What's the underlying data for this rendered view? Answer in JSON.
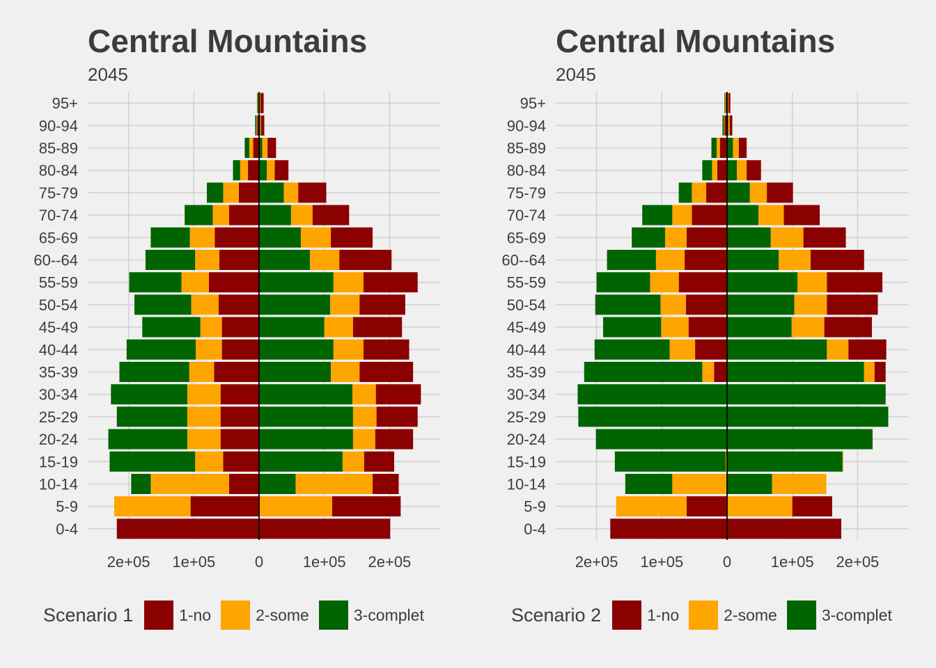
{
  "legend_labels": [
    "1-no",
    "2-some",
    "3-complet"
  ],
  "colors": {
    "1-no": "#8b0000",
    "2-some": "#ffa500",
    "3-complet": "#006400"
  },
  "chart_data": [
    {
      "type": "bar",
      "orientation": "horizontal-population-pyramid",
      "title": "Central Mountains",
      "subtitle": "2045",
      "legend_title": "Scenario 1",
      "legend_position": "bottom",
      "grid": true,
      "xlim": [
        -270000,
        270000
      ],
      "x_ticks": [
        -200000,
        -100000,
        0,
        100000,
        200000
      ],
      "x_tick_labels": [
        "2e+05",
        "1e+05",
        "0",
        "1e+05",
        "2e+05"
      ],
      "categories": [
        "0-4",
        "5-9",
        "10-14",
        "15-19",
        "20-24",
        "25-29",
        "30-34",
        "35-39",
        "40-44",
        "45-49",
        "50-54",
        "55-59",
        "60--64",
        "65-69",
        "70-74",
        "75-79",
        "80-84",
        "85-89",
        "90-94",
        "95+"
      ],
      "series": [
        {
          "name": "1-no",
          "side": "left",
          "values": [
            218000,
            105000,
            46000,
            55000,
            59000,
            59000,
            59000,
            69000,
            57000,
            57000,
            62000,
            77000,
            61000,
            68000,
            46000,
            31000,
            17000,
            9000,
            3000,
            1500
          ]
        },
        {
          "name": "2-some",
          "side": "left",
          "values": [
            0,
            117000,
            120000,
            43000,
            51000,
            51000,
            51000,
            38000,
            40000,
            33000,
            42000,
            42000,
            37000,
            38000,
            25000,
            24000,
            12000,
            6000,
            1000,
            500
          ]
        },
        {
          "name": "3-complet",
          "side": "left",
          "values": [
            0,
            0,
            30000,
            131000,
            121000,
            108000,
            117000,
            107000,
            106000,
            89000,
            87000,
            80000,
            76000,
            60000,
            43000,
            25000,
            11000,
            7000,
            2000,
            1000
          ]
        },
        {
          "name": "3-complet",
          "side": "right",
          "values": [
            0,
            0,
            56000,
            128000,
            144000,
            144000,
            143000,
            110000,
            114000,
            100000,
            109000,
            114000,
            78000,
            64000,
            49000,
            38000,
            12000,
            5000,
            2000,
            1000
          ]
        },
        {
          "name": "2-some",
          "side": "right",
          "values": [
            0,
            112000,
            118000,
            33000,
            34000,
            36000,
            36000,
            44000,
            46000,
            44000,
            45000,
            46000,
            45000,
            46000,
            33000,
            22000,
            12000,
            8000,
            1000,
            1000
          ]
        },
        {
          "name": "1-no",
          "side": "right",
          "values": [
            201000,
            105000,
            40000,
            46000,
            58000,
            63000,
            69000,
            82000,
            70000,
            75000,
            70000,
            83000,
            80000,
            64000,
            56000,
            43000,
            21000,
            13000,
            5000,
            5000
          ]
        }
      ]
    },
    {
      "type": "bar",
      "orientation": "horizontal-population-pyramid",
      "title": "Central Mountains",
      "subtitle": "2045",
      "legend_title": "Scenario 2",
      "legend_position": "bottom",
      "grid": true,
      "xlim": [
        -270000,
        270000
      ],
      "x_ticks": [
        -200000,
        -100000,
        0,
        100000,
        200000
      ],
      "x_tick_labels": [
        "2e+05",
        "1e+05",
        "0",
        "1e+05",
        "2e+05"
      ],
      "categories": [
        "0-4",
        "5-9",
        "10-14",
        "15-19",
        "20-24",
        "25-29",
        "30-34",
        "35-39",
        "40-44",
        "45-49",
        "50-54",
        "55-59",
        "60--64",
        "65-69",
        "70-74",
        "75-79",
        "80-84",
        "85-89",
        "90-94",
        "95+"
      ],
      "series": [
        {
          "name": "1-no",
          "side": "left",
          "values": [
            179000,
            62000,
            0,
            1000,
            0,
            0,
            0,
            20000,
            49000,
            59000,
            63000,
            74000,
            65000,
            62000,
            54000,
            32000,
            15000,
            11000,
            4000,
            2000
          ]
        },
        {
          "name": "2-some",
          "side": "left",
          "values": [
            0,
            108000,
            84000,
            1000,
            0,
            0,
            0,
            18000,
            39000,
            42000,
            39000,
            44000,
            44000,
            33000,
            30000,
            22000,
            8000,
            5000,
            1000,
            1000
          ]
        },
        {
          "name": "3-complet",
          "side": "left",
          "values": [
            0,
            0,
            72000,
            170000,
            201000,
            228000,
            229000,
            181000,
            115000,
            89000,
            100000,
            82000,
            75000,
            51000,
            46000,
            20000,
            15000,
            8000,
            2000,
            1000
          ]
        },
        {
          "name": "3-complet",
          "side": "right",
          "values": [
            0,
            0,
            69000,
            177000,
            223000,
            247000,
            243000,
            210000,
            153000,
            99000,
            103000,
            108000,
            79000,
            67000,
            48000,
            35000,
            15000,
            9000,
            2000,
            1000
          ]
        },
        {
          "name": "2-some",
          "side": "right",
          "values": [
            0,
            100000,
            83000,
            1000,
            0,
            0,
            0,
            16000,
            33000,
            50000,
            50000,
            45000,
            49000,
            50000,
            39000,
            26000,
            15000,
            9000,
            2000,
            1000
          ]
        },
        {
          "name": "1-no",
          "side": "right",
          "values": [
            175000,
            61000,
            0,
            0,
            0,
            0,
            0,
            17000,
            58000,
            73000,
            78000,
            85000,
            82000,
            65000,
            55000,
            40000,
            22000,
            12000,
            4000,
            3000
          ]
        }
      ]
    }
  ]
}
